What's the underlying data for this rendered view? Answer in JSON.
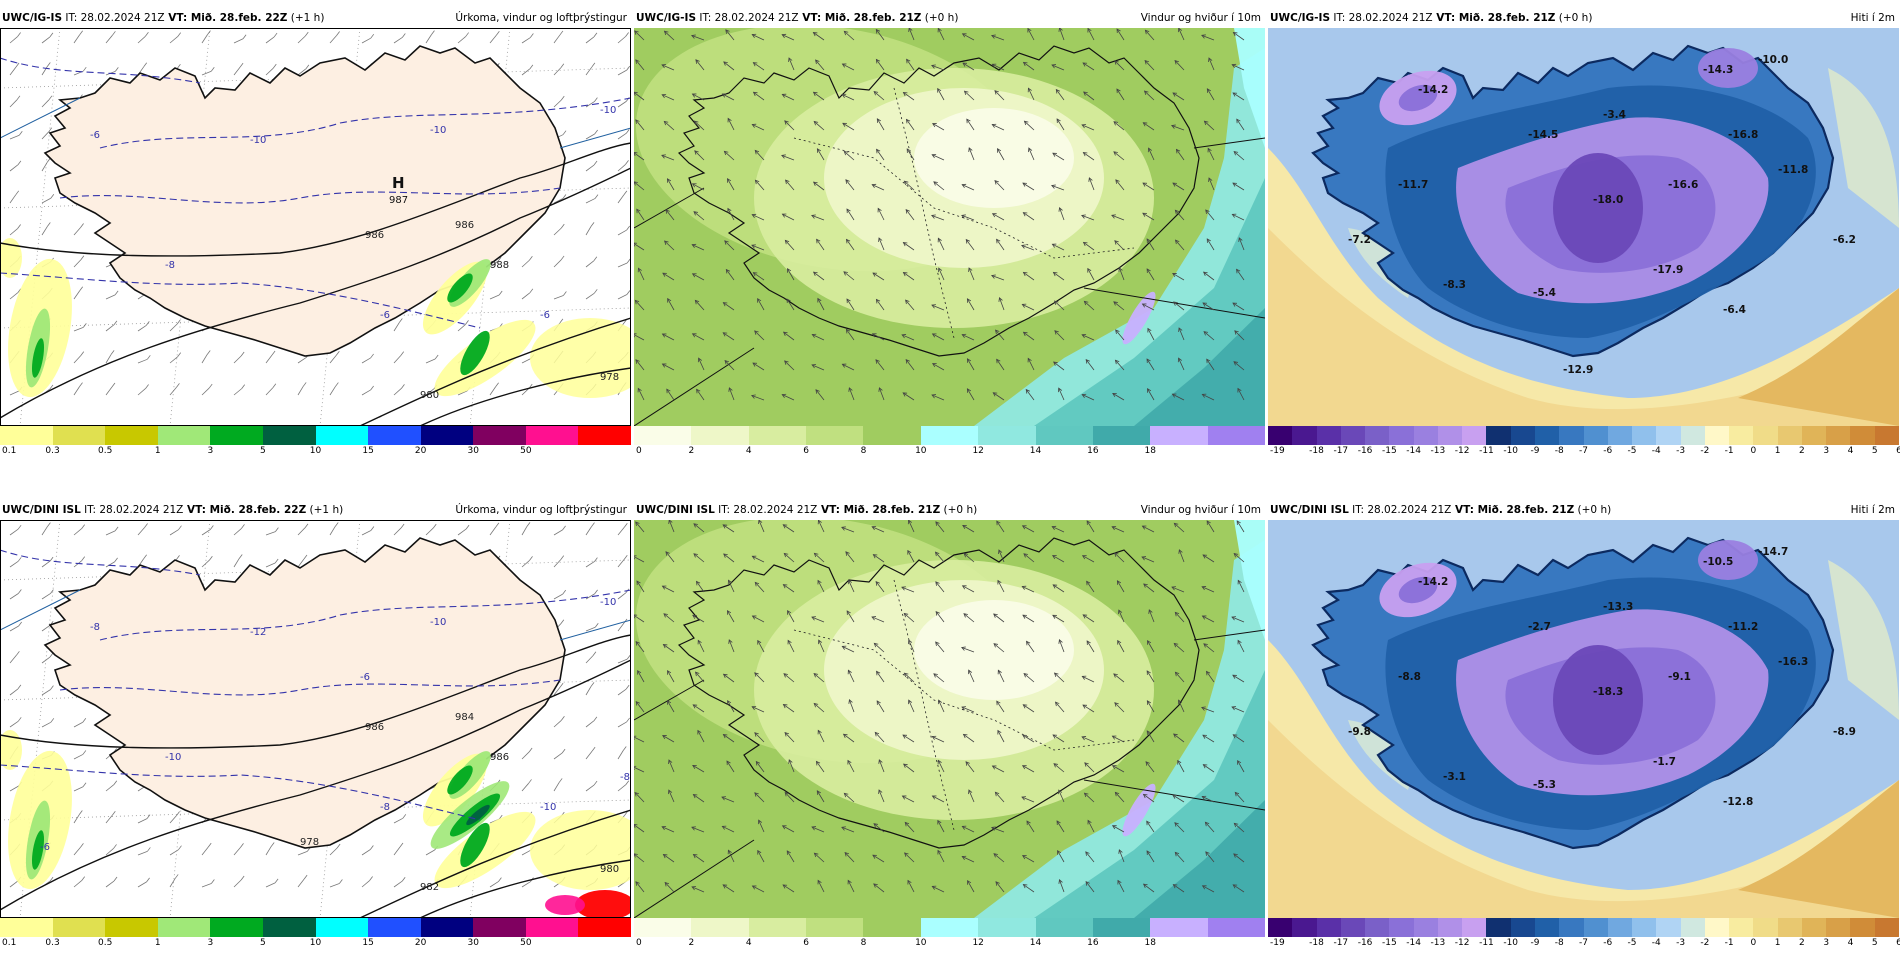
{
  "panels": [
    {
      "id": "igis-precip",
      "model": "UWC/IG-IS",
      "it_label": "IT:",
      "it": "28.02.2024 21Z",
      "vt_label": "VT:",
      "vt": "Mið. 28.feb. 22Z",
      "lead": "(+1 h)",
      "title": "Úrkoma, vindur og loftþrýstingur",
      "map_type": "precip",
      "ticks": [
        "0.1",
        "0.3",
        "0.5",
        "1",
        "3",
        "5",
        "10",
        "15",
        "20",
        "30",
        "50"
      ],
      "high_label": "H",
      "high_value": "987",
      "isobar_labels": [
        "986",
        "988",
        "986",
        "980",
        "978"
      ],
      "isotherm_labels": [
        "-10",
        "-10",
        "-10",
        "-8",
        "-6",
        "-6",
        "-6"
      ]
    },
    {
      "id": "igis-wind",
      "model": "UWC/IG-IS",
      "it_label": "IT:",
      "it": "28.02.2024 21Z",
      "vt_label": "VT:",
      "vt": "Mið. 28.feb. 21Z",
      "lead": "(+0 h)",
      "title": "Vindur og hviður í 10m",
      "map_type": "wind",
      "ticks": [
        "0",
        "2",
        "4",
        "6",
        "8",
        "10",
        "12",
        "14",
        "16",
        "18"
      ]
    },
    {
      "id": "igis-temp",
      "model": "UWC/IG-IS",
      "it_label": "IT:",
      "it": "28.02.2024 21Z",
      "vt_label": "VT:",
      "vt": "Mið. 28.feb. 21Z",
      "lead": "(+0 h)",
      "title": "Hiti í 2m",
      "map_type": "temp",
      "ticks": [
        "-19",
        "-18",
        "-17",
        "-16",
        "-15",
        "-14",
        "-13",
        "-12",
        "-11",
        "-10",
        "-9",
        "-8",
        "-7",
        "-6",
        "-5",
        "-4",
        "-3",
        "-2",
        "-1",
        "0",
        "1",
        "2",
        "3",
        "4",
        "5",
        "6"
      ],
      "temp_labels": [
        "-14.2",
        "-14.3",
        "-10.0",
        "-14.5",
        "-3.4",
        "-16.8",
        "-11.7",
        "-18.0",
        "-16.6",
        "-11.8",
        "-7.2",
        "-6.2",
        "-8.3",
        "-5.4",
        "-17.9",
        "-6.4",
        "-12.9"
      ]
    },
    {
      "id": "dini-precip",
      "model": "UWC/DINI ISL",
      "it_label": "IT:",
      "it": "28.02.2024 21Z",
      "vt_label": "VT:",
      "vt": "Mið. 28.feb. 22Z",
      "lead": "(+1 h)",
      "title": "Úrkoma, vindur og loftþrýstingur",
      "map_type": "precip",
      "ticks": [
        "0.1",
        "0.3",
        "0.5",
        "1",
        "3",
        "5",
        "10",
        "15",
        "20",
        "30",
        "50"
      ],
      "isobar_labels": [
        "986",
        "986",
        "984",
        "982",
        "980",
        "978"
      ],
      "isotherm_labels": [
        "-12",
        "-10",
        "-10",
        "-10",
        "-10",
        "-8",
        "-8",
        "-6",
        "-6",
        "-8"
      ]
    },
    {
      "id": "dini-wind",
      "model": "UWC/DINI ISL",
      "it_label": "IT:",
      "it": "28.02.2024 21Z",
      "vt_label": "VT:",
      "vt": "Mið. 28.feb. 21Z",
      "lead": "(+0 h)",
      "title": "Vindur og hviður í 10m",
      "map_type": "wind",
      "ticks": [
        "0",
        "2",
        "4",
        "6",
        "8",
        "10",
        "12",
        "14",
        "16",
        "18"
      ]
    },
    {
      "id": "dini-temp",
      "model": "UWC/DINI ISL",
      "it_label": "IT:",
      "it": "28.02.2024 21Z",
      "vt_label": "VT:",
      "vt": "Mið. 28.feb. 21Z",
      "lead": "(+0 h)",
      "title": "Hiti í 2m",
      "map_type": "temp",
      "ticks": [
        "-19",
        "-18",
        "-17",
        "-16",
        "-15",
        "-14",
        "-13",
        "-12",
        "-11",
        "-10",
        "-9",
        "-8",
        "-7",
        "-6",
        "-5",
        "-4",
        "-3",
        "-2",
        "-1",
        "0",
        "1",
        "2",
        "3",
        "4",
        "5",
        "6"
      ],
      "temp_labels": [
        "-14.2",
        "-10.5",
        "-14.7",
        "-2.7",
        "-13.3",
        "-11.2",
        "-8.8",
        "-18.3",
        "-9.1",
        "-16.3",
        "-9.8",
        "-8.9",
        "-3.1",
        "-5.3",
        "-1.7",
        "-12.8"
      ]
    }
  ],
  "colors": {
    "precip": [
      "#ffff99",
      "#e0e050",
      "#c8c800",
      "#a0e878",
      "#00aa20",
      "#006040",
      "#00ffff",
      "#2050ff",
      "#000080",
      "#800060",
      "#ff1090",
      "#ff0000"
    ],
    "wind": [
      "#fafde8",
      "#eef7c8",
      "#d8eda0",
      "#c0e080",
      "#a0cc60",
      "#aaffff",
      "#90e8e0",
      "#60c8c0",
      "#40aaaa",
      "#c8b0ff",
      "#a080f0"
    ],
    "temp": [
      "#380070",
      "#4a1890",
      "#5a30a8",
      "#6a48b8",
      "#7a60c8",
      "#8a70d8",
      "#9a80e0",
      "#b090e8",
      "#c8a0f0",
      "#103070",
      "#184890",
      "#2060a8",
      "#3878c0",
      "#5090d0",
      "#70a8e0",
      "#90c0ec",
      "#b0d4f4",
      "#d0e8e0",
      "#fff8c8",
      "#f8eca0",
      "#f0dc88",
      "#e8c870",
      "#e0b458",
      "#d8a048",
      "#d08c38",
      "#c87830"
    ],
    "land_precip": "#fdefe2",
    "sea_temp_warm": "#f2d890",
    "sea_temp_cold": "#a8c8ec"
  }
}
